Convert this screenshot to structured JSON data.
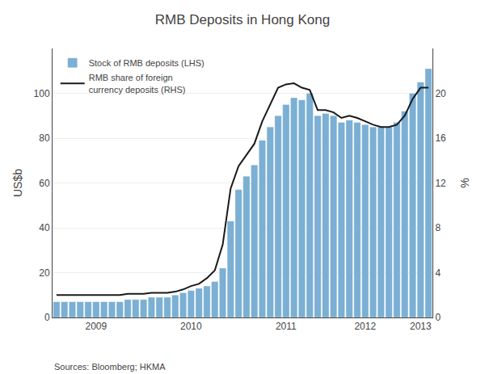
{
  "chart_data": {
    "type": "bar",
    "title": "RMB Deposits in Hong Kong",
    "ylabel": "US$b",
    "y2label": "%",
    "source": "Sources: Bloomberg; HKMA",
    "categories": [
      null,
      null,
      null,
      null,
      null,
      "2009",
      null,
      null,
      null,
      null,
      null,
      null,
      null,
      null,
      null,
      null,
      null,
      "2010",
      null,
      null,
      null,
      null,
      null,
      null,
      null,
      null,
      null,
      null,
      null,
      "2011",
      null,
      null,
      null,
      null,
      null,
      null,
      null,
      null,
      null,
      "2012",
      null,
      null,
      null,
      null,
      null,
      null,
      "2013",
      null
    ],
    "series": [
      {
        "name": "Stock of RMB deposits (LHS)",
        "type": "bar",
        "color": "#7bafd4",
        "values": [
          7,
          7,
          7,
          7,
          7,
          7,
          7,
          7,
          7,
          8,
          8,
          8,
          9,
          9,
          9,
          10,
          11,
          12,
          13,
          14,
          16,
          22,
          43,
          57,
          63,
          68,
          79,
          85,
          90,
          95,
          98,
          97,
          100,
          90,
          91,
          90,
          87,
          88,
          87,
          86,
          85,
          85,
          85,
          87,
          92,
          100,
          105,
          111
        ]
      },
      {
        "name": "RMB share of foreign\ncurrency deposits (RHS)",
        "type": "line",
        "axis": "y2",
        "color": "#1a1a1a",
        "values": [
          2.0,
          2.0,
          2.0,
          2.0,
          2.0,
          2.0,
          2.0,
          2.0,
          2.0,
          2.1,
          2.1,
          2.1,
          2.2,
          2.2,
          2.2,
          2.3,
          2.5,
          2.8,
          3.0,
          3.5,
          4.2,
          6.5,
          11.5,
          13.5,
          14.5,
          15.5,
          17.5,
          19.0,
          20.5,
          20.8,
          20.9,
          20.5,
          20.3,
          18.5,
          18.5,
          18.3,
          17.8,
          18.0,
          17.8,
          17.5,
          17.2,
          17.0,
          17.0,
          17.2,
          18.0,
          19.5,
          20.5,
          20.5
        ]
      }
    ],
    "ylim": [
      0,
      120
    ],
    "yticks": [
      0,
      20,
      40,
      60,
      80,
      100
    ],
    "y2lim": [
      0,
      24
    ],
    "y2ticks": [
      0,
      4,
      8,
      12,
      16,
      20
    ],
    "grid": true,
    "legend": "upper left"
  }
}
